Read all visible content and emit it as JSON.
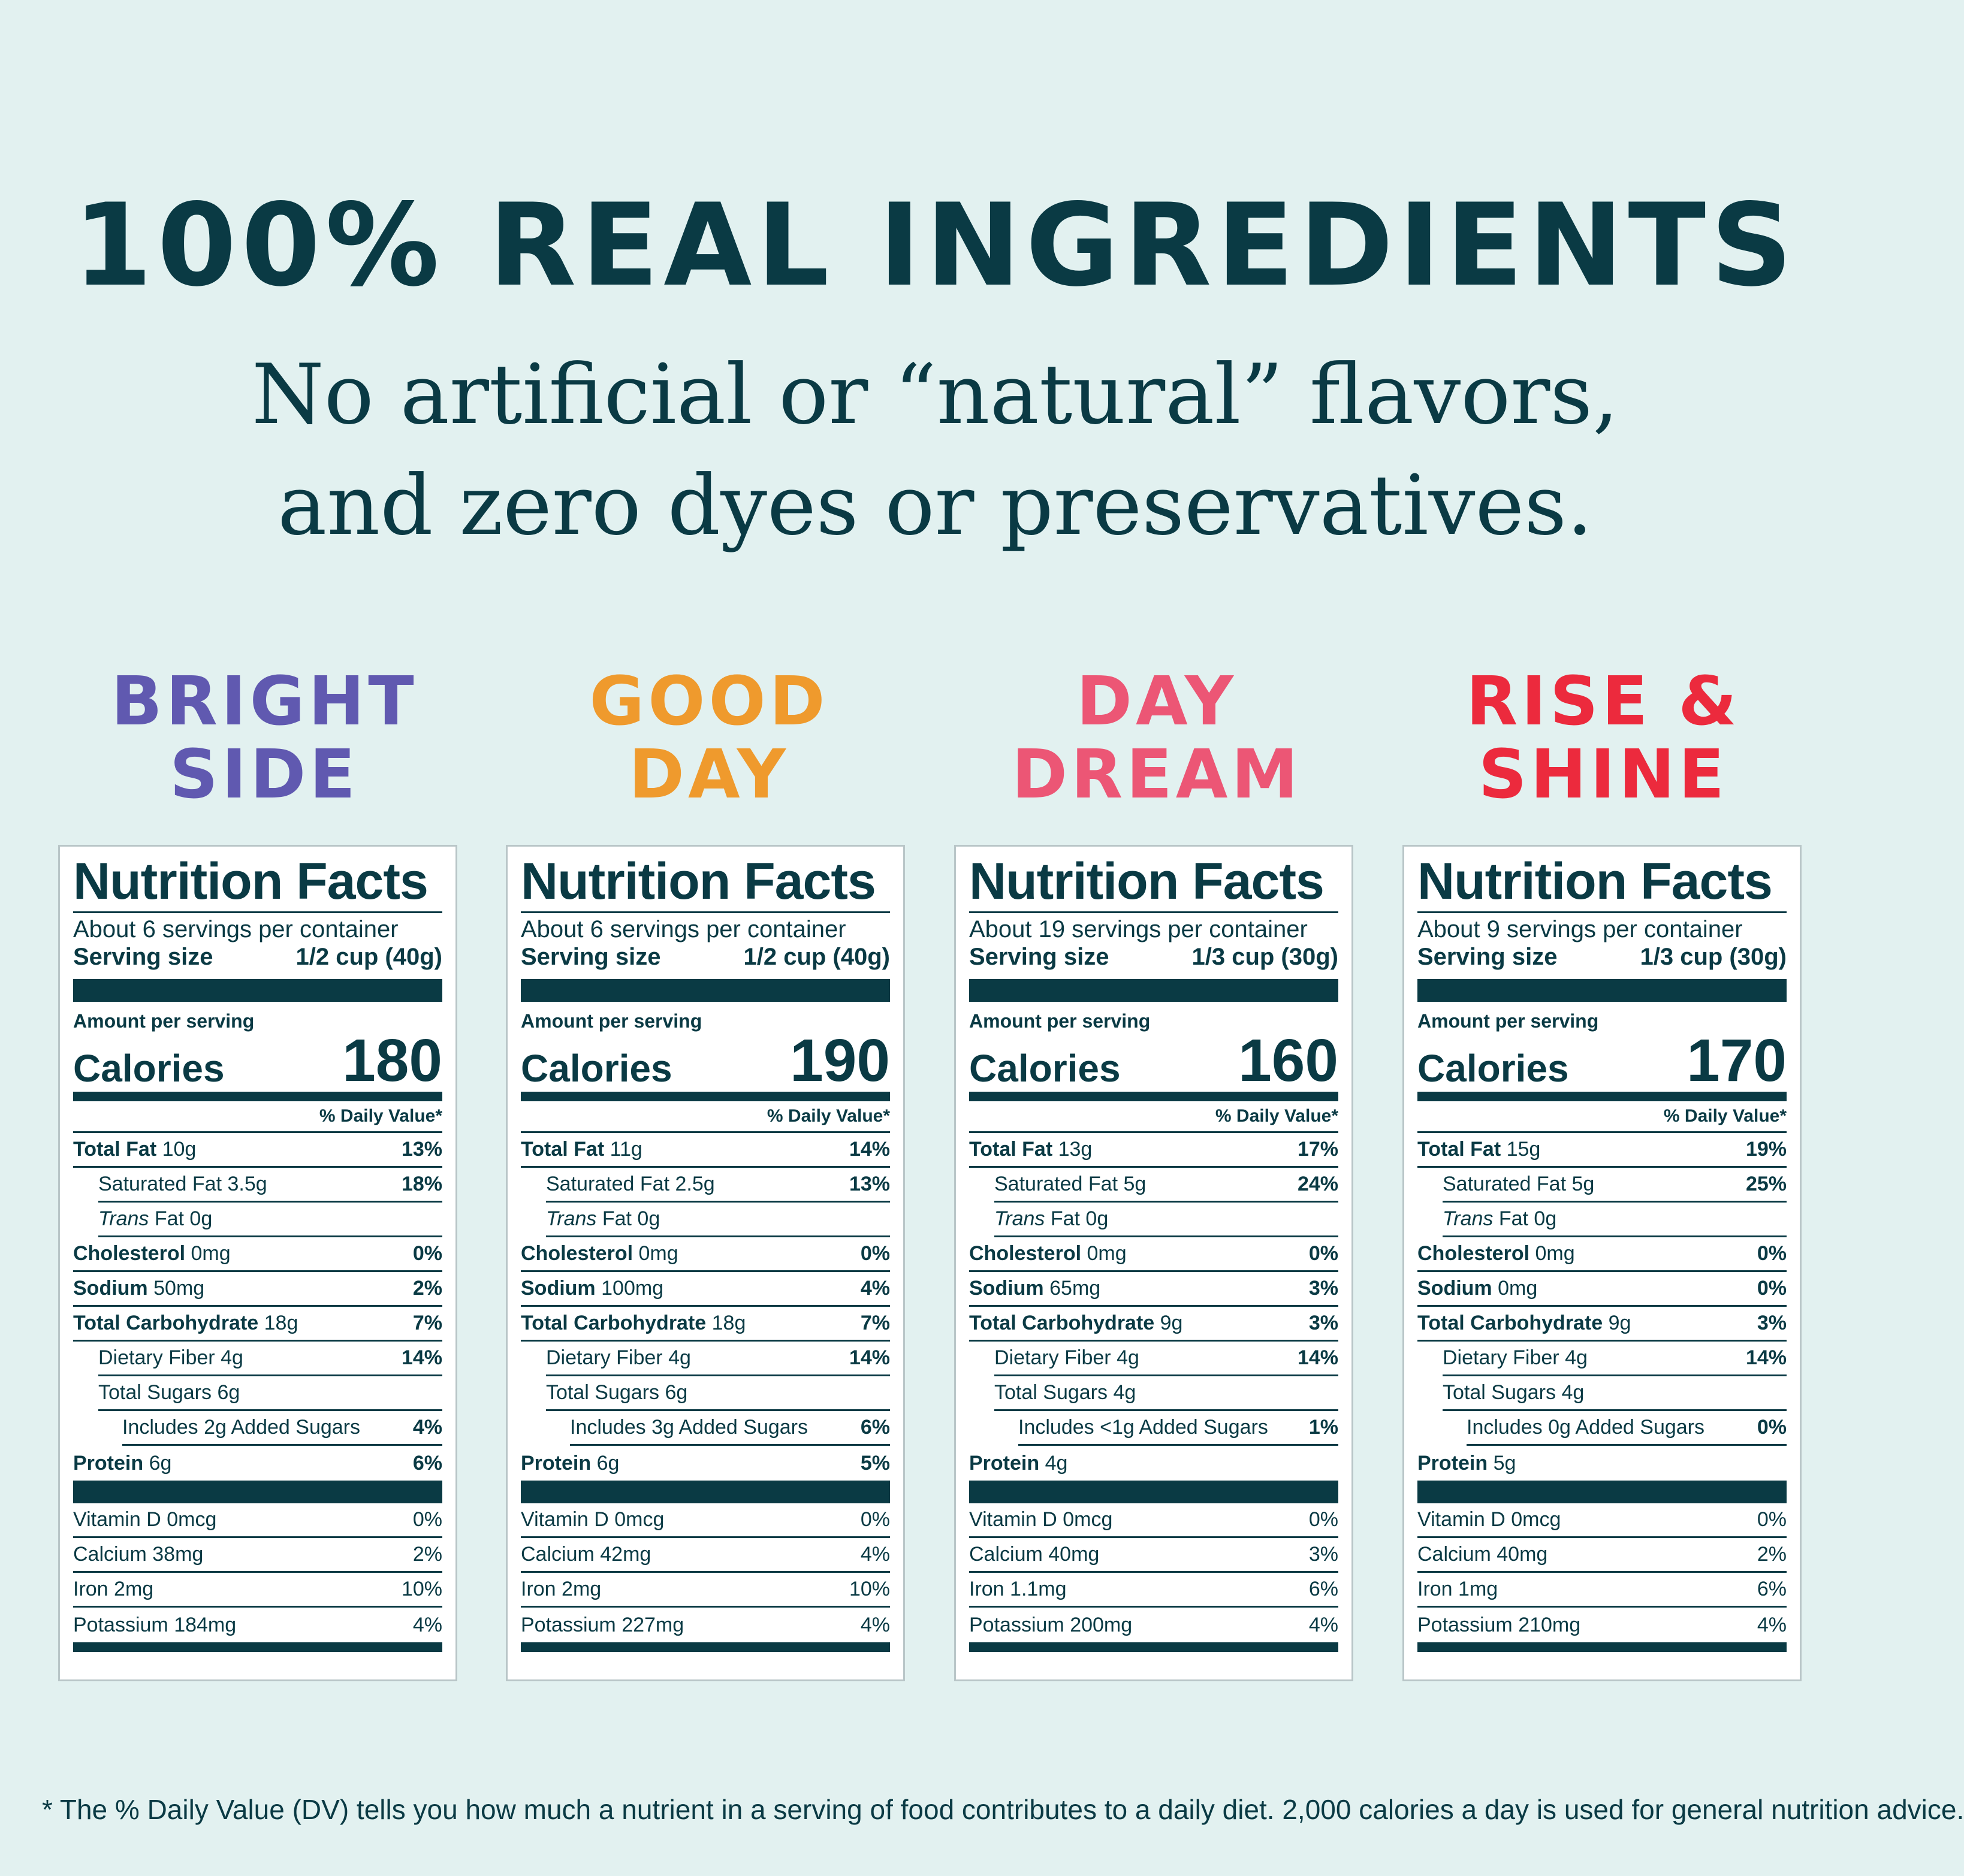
{
  "header": {
    "title": "100% REAL INGREDIENTS",
    "subtitle_line1": "No artificial or “natural” flavors,",
    "subtitle_line2": "and zero dyes or preservatives."
  },
  "colors": {
    "background": "#e2f1f0",
    "text": "#0a3a44",
    "bright_side": "#6059b0",
    "good_day": "#ef9a2d",
    "day_dream": "#ec5675",
    "rise_shine": "#ec2a3d"
  },
  "labels": {
    "nutrition_facts": "Nutrition Facts",
    "serving_size": "Serving size",
    "amount_per_serving": "Amount per serving",
    "calories": "Calories",
    "daily_value": "% Daily Value*",
    "total_fat": "Total Fat",
    "saturated_fat": "Saturated Fat",
    "trans": "Trans",
    "fat": "Fat",
    "cholesterol": "Cholesterol",
    "sodium": "Sodium",
    "total_carbohydrate": "Total Carbohydrate",
    "dietary_fiber": "Dietary Fiber",
    "total_sugars": "Total Sugars",
    "includes": "Includes",
    "added_sugars": "Added Sugars",
    "protein": "Protein",
    "vitamin_d": "Vitamin D",
    "calcium": "Calcium",
    "iron": "Iron",
    "potassium": "Potassium"
  },
  "products": [
    {
      "name_line1": "BRIGHT",
      "name_line2": "SIDE",
      "servings": "About 6 servings per container",
      "serving_size": "1/2 cup (40g)",
      "calories": "180",
      "total_fat": "10g",
      "total_fat_dv": "13%",
      "sat_fat": "3.5g",
      "sat_fat_dv": "18%",
      "trans_fat": "0g",
      "cholesterol": "0mg",
      "cholesterol_dv": "0%",
      "sodium": "50mg",
      "sodium_dv": "2%",
      "carb": "18g",
      "carb_dv": "7%",
      "fiber": "4g",
      "fiber_dv": "14%",
      "sugars": "6g",
      "added_sugars": "2g",
      "added_sugars_dv": "4%",
      "protein": "6g",
      "protein_dv": "6%",
      "vitamin_d": "0mcg",
      "vitamin_d_dv": "0%",
      "calcium": "38mg",
      "calcium_dv": "2%",
      "iron": "2mg",
      "iron_dv": "10%",
      "potassium": "184mg",
      "potassium_dv": "4%"
    },
    {
      "name_line1": "GOOD",
      "name_line2": "DAY",
      "servings": "About 6 servings per container",
      "serving_size": "1/2 cup (40g)",
      "calories": "190",
      "total_fat": "11g",
      "total_fat_dv": "14%",
      "sat_fat": "2.5g",
      "sat_fat_dv": "13%",
      "trans_fat": "0g",
      "cholesterol": "0mg",
      "cholesterol_dv": "0%",
      "sodium": "100mg",
      "sodium_dv": "4%",
      "carb": "18g",
      "carb_dv": "7%",
      "fiber": "4g",
      "fiber_dv": "14%",
      "sugars": "6g",
      "added_sugars": "3g",
      "added_sugars_dv": "6%",
      "protein": "6g",
      "protein_dv": "5%",
      "vitamin_d": "0mcg",
      "vitamin_d_dv": "0%",
      "calcium": "42mg",
      "calcium_dv": "4%",
      "iron": "2mg",
      "iron_dv": "10%",
      "potassium": "227mg",
      "potassium_dv": "4%"
    },
    {
      "name_line1": "DAY",
      "name_line2": "DREAM",
      "servings": "About 19 servings per container",
      "serving_size": "1/3 cup (30g)",
      "calories": "160",
      "total_fat": "13g",
      "total_fat_dv": "17%",
      "sat_fat": "5g",
      "sat_fat_dv": "24%",
      "trans_fat": "0g",
      "cholesterol": "0mg",
      "cholesterol_dv": "0%",
      "sodium": "65mg",
      "sodium_dv": "3%",
      "carb": "9g",
      "carb_dv": "3%",
      "fiber": "4g",
      "fiber_dv": "14%",
      "sugars": "4g",
      "added_sugars": "<1g",
      "added_sugars_dv": "1%",
      "protein": "4g",
      "protein_dv": "",
      "vitamin_d": "0mcg",
      "vitamin_d_dv": "0%",
      "calcium": "40mg",
      "calcium_dv": "3%",
      "iron": "1.1mg",
      "iron_dv": "6%",
      "potassium": "200mg",
      "potassium_dv": "4%"
    },
    {
      "name_line1": "RISE &",
      "name_line2": "SHINE",
      "servings": "About 9 servings per container",
      "serving_size": "1/3 cup (30g)",
      "calories": "170",
      "total_fat": "15g",
      "total_fat_dv": "19%",
      "sat_fat": "5g",
      "sat_fat_dv": "25%",
      "trans_fat": "0g",
      "cholesterol": "0mg",
      "cholesterol_dv": "0%",
      "sodium": "0mg",
      "sodium_dv": "0%",
      "carb": "9g",
      "carb_dv": "3%",
      "fiber": "4g",
      "fiber_dv": "14%",
      "sugars": "4g",
      "added_sugars": "0g",
      "added_sugars_dv": "0%",
      "protein": "5g",
      "protein_dv": "",
      "vitamin_d": "0mcg",
      "vitamin_d_dv": "0%",
      "calcium": "40mg",
      "calcium_dv": "2%",
      "iron": "1mg",
      "iron_dv": "6%",
      "potassium": "210mg",
      "potassium_dv": "4%"
    }
  ],
  "footnote": "* The % Daily Value (DV) tells you how much a nutrient in a serving of food contributes to a daily diet. 2,000 calories a day is used for general nutrition advice."
}
